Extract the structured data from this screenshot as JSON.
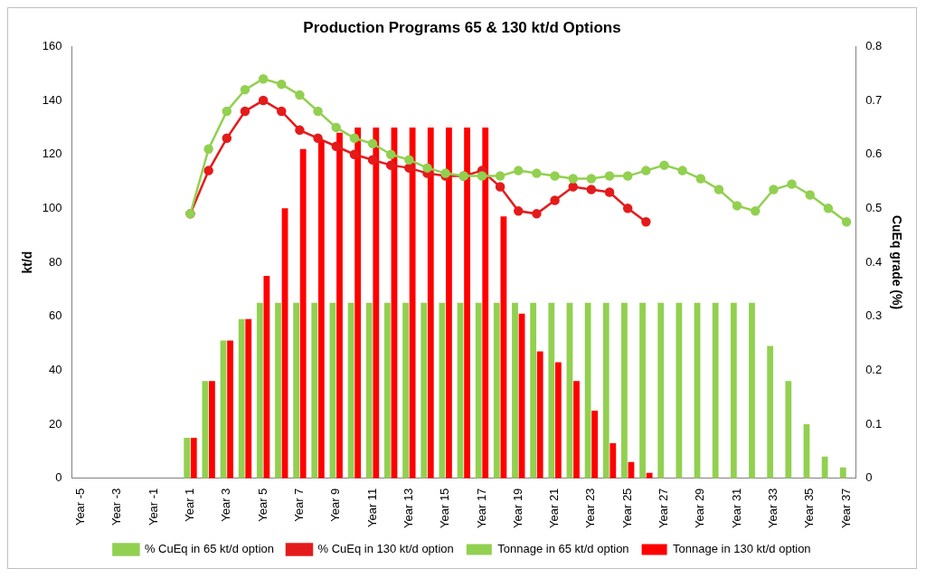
{
  "chart_data": {
    "type": "bar",
    "title": "Production Programs 65 & 130 kt/d Options",
    "y_label": "kt/d",
    "y2_label": "CuEq grade (%)",
    "categories": [
      "Year -5",
      null,
      "Year -3",
      null,
      "Year -1",
      null,
      "Year 1",
      null,
      "Year 3",
      null,
      "Year 5",
      null,
      "Year 7",
      null,
      "Year 9",
      null,
      "Year 11",
      null,
      "Year 13",
      null,
      "Year 15",
      null,
      "Year 17",
      null,
      "Year 19",
      null,
      "Year 21",
      null,
      "Year 23",
      null,
      "Year 25",
      null,
      "Year 27",
      null,
      "Year 29",
      null,
      "Year 31",
      null,
      "Year 33",
      null,
      "Year 35",
      null,
      "Year 37"
    ],
    "series": [
      {
        "name": "Tonnage in 65 kt/d option",
        "type": "bar",
        "color": "#92d050",
        "values": [
          null,
          null,
          null,
          null,
          null,
          null,
          15,
          36,
          51,
          59,
          65,
          65,
          65,
          65,
          65,
          65,
          65,
          65,
          65,
          65,
          65,
          65,
          65,
          65,
          65,
          65,
          65,
          65,
          65,
          65,
          65,
          65,
          65,
          65,
          65,
          65,
          65,
          65,
          49,
          36,
          20,
          8,
          4
        ]
      },
      {
        "name": "Tonnage in 130 kt/d option",
        "type": "bar",
        "color": "#ff0000",
        "values": [
          null,
          null,
          null,
          null,
          null,
          null,
          15,
          36,
          51,
          59,
          75,
          100,
          122,
          125,
          128,
          130,
          130,
          130,
          130,
          130,
          130,
          130,
          130,
          97,
          61,
          47,
          43,
          36,
          25,
          13,
          6,
          2,
          null,
          null,
          null,
          null,
          null,
          null,
          null,
          null,
          null,
          null,
          null
        ]
      },
      {
        "name": "% CuEq in 65 kt/d option",
        "type": "line",
        "axis": "y2",
        "color": "#92d050",
        "marker": "circle",
        "values": [
          null,
          null,
          null,
          null,
          null,
          null,
          0.49,
          0.61,
          0.68,
          0.72,
          0.74,
          0.73,
          0.71,
          0.68,
          0.65,
          0.63,
          0.62,
          0.6,
          0.59,
          0.575,
          0.565,
          0.56,
          0.56,
          0.56,
          0.57,
          0.565,
          0.56,
          0.555,
          0.555,
          0.56,
          0.56,
          0.57,
          0.58,
          0.57,
          0.555,
          0.535,
          0.505,
          0.495,
          0.535,
          0.545,
          0.525,
          0.5,
          0.475
        ]
      },
      {
        "name": "% CuEq in 130 kt/d option",
        "type": "line",
        "axis": "y2",
        "color": "#e41b1b",
        "marker": "circle",
        "values": [
          null,
          null,
          null,
          null,
          null,
          null,
          0.49,
          0.57,
          0.63,
          0.68,
          0.7,
          0.68,
          0.645,
          0.63,
          0.615,
          0.6,
          0.59,
          0.58,
          0.575,
          0.565,
          0.56,
          0.56,
          0.57,
          0.54,
          0.495,
          0.49,
          0.515,
          0.54,
          0.535,
          0.53,
          0.5,
          0.475,
          null,
          null,
          null,
          null,
          null,
          null,
          null,
          null,
          null,
          null,
          null
        ]
      }
    ],
    "ylim": [
      0,
      160
    ],
    "yticks": [
      0,
      20,
      40,
      60,
      80,
      100,
      120,
      140,
      160
    ],
    "y2lim": [
      0,
      0.8
    ],
    "y2ticks": [
      0,
      0.1,
      0.2,
      0.3,
      0.4,
      0.5,
      0.6,
      0.7,
      0.8
    ],
    "grid": false,
    "legend": "bottom"
  }
}
